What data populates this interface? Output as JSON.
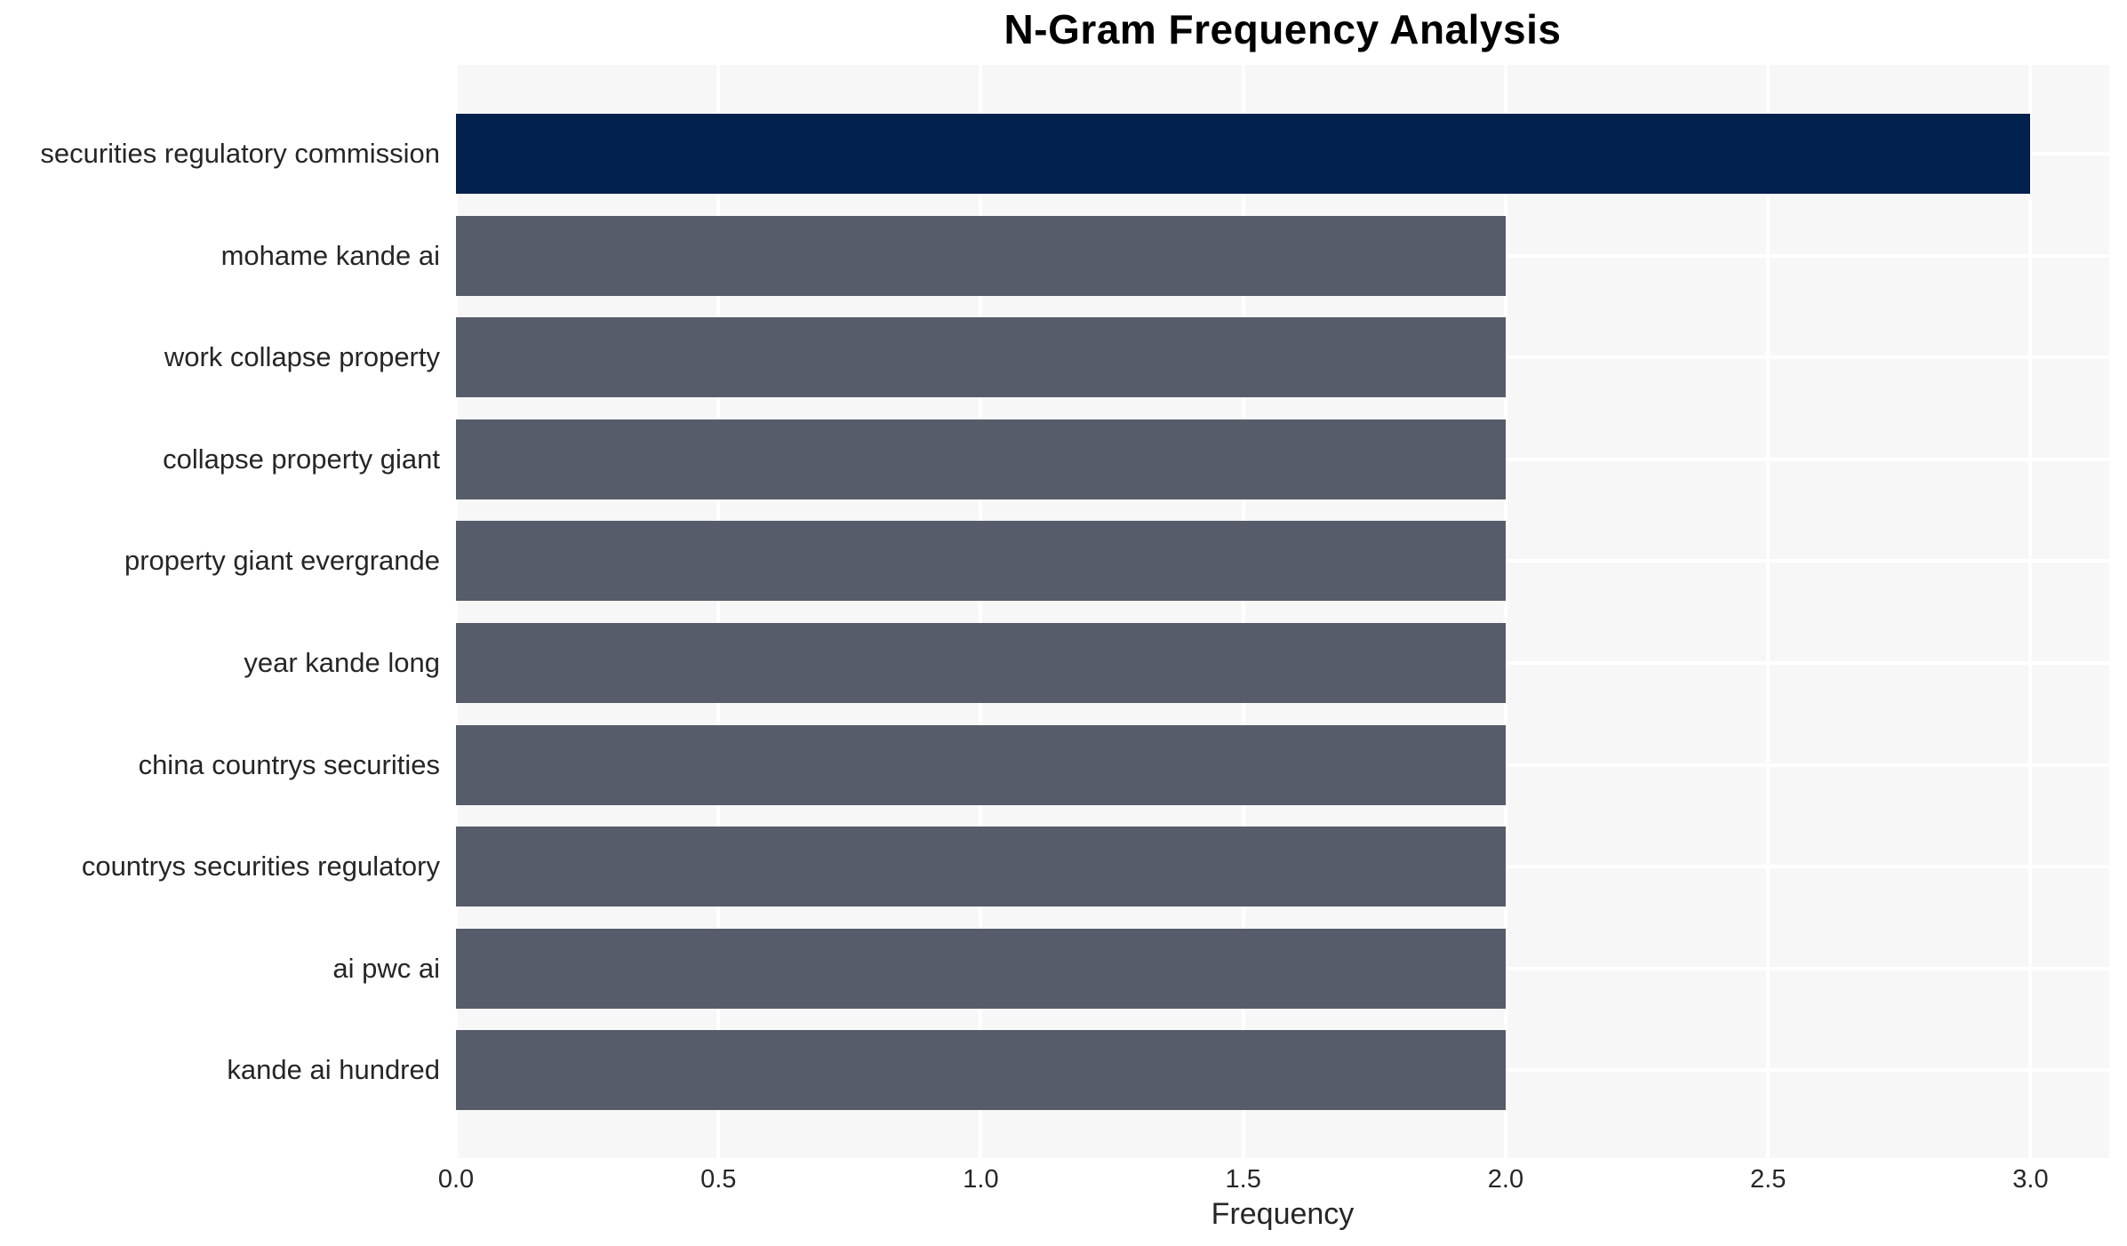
{
  "chart_data": {
    "type": "bar",
    "orientation": "horizontal",
    "title": "N-Gram Frequency Analysis",
    "xlabel": "Frequency",
    "ylabel": "",
    "categories": [
      "securities regulatory commission",
      "mohame kande ai",
      "work collapse property",
      "collapse property giant",
      "property giant evergrande",
      "year kande long",
      "china countrys securities",
      "countrys securities regulatory",
      "ai pwc ai",
      "kande ai hundred"
    ],
    "values": [
      3.0,
      2.0,
      2.0,
      2.0,
      2.0,
      2.0,
      2.0,
      2.0,
      2.0,
      2.0
    ],
    "bar_colors": [
      "#02214d",
      "#565c6a",
      "#565c6a",
      "#565c6a",
      "#565c6a",
      "#565c6a",
      "#565c6a",
      "#565c6a",
      "#565c6a",
      "#565c6a"
    ],
    "xlim": [
      0,
      3.15
    ],
    "xticks": [
      "0.0",
      "0.5",
      "1.0",
      "1.5",
      "2.0",
      "2.5",
      "3.0"
    ],
    "xtick_values": [
      0,
      0.5,
      1.0,
      1.5,
      2.0,
      2.5,
      3.0
    ],
    "grid": true,
    "legend": false,
    "colors": {
      "highlight_bar": "#02214d",
      "default_bar": "#565c6a",
      "plot_background": "#f7f7f8",
      "grid_line": "#ffffff",
      "tick_text": "#262626",
      "title_text": "#000000"
    }
  }
}
